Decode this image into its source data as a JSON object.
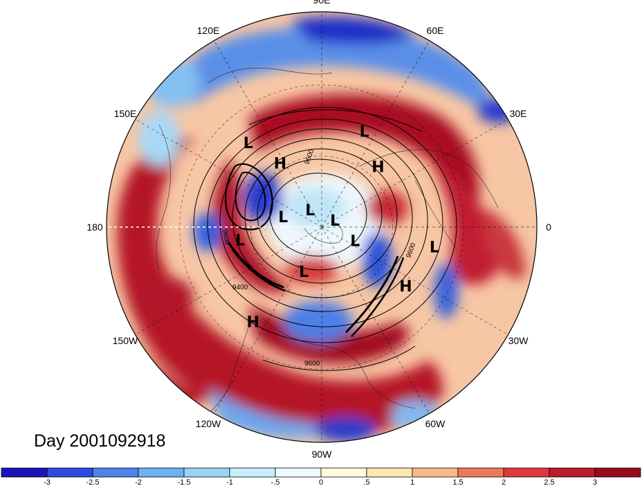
{
  "title": "Day 2001092918",
  "longitude_labels": [
    {
      "text": "90E",
      "angle": 0
    },
    {
      "text": "60E",
      "angle": 30
    },
    {
      "text": "30E",
      "angle": 60
    },
    {
      "text": "0",
      "angle": 90
    },
    {
      "text": "30W",
      "angle": 120
    },
    {
      "text": "60W",
      "angle": 150
    },
    {
      "text": "90W",
      "angle": 180
    },
    {
      "text": "120W",
      "angle": 210
    },
    {
      "text": "150W",
      "angle": 240
    },
    {
      "text": "180",
      "angle": 270
    },
    {
      "text": "150E",
      "angle": 300
    },
    {
      "text": "120E",
      "angle": 330
    }
  ],
  "pressure_centers": [
    {
      "text": "L",
      "lon": 66,
      "lat": 38
    },
    {
      "text": "H",
      "lon": 47,
      "lat": 48
    },
    {
      "text": "H",
      "lon": 123,
      "lat": 51
    },
    {
      "text": "L",
      "lon": 131,
      "lat": 35
    },
    {
      "text": "L",
      "lon": 165,
      "lat": 69
    },
    {
      "text": "L",
      "lon": 124,
      "lat": 79
    },
    {
      "text": "L",
      "lon": 28,
      "lat": 82
    },
    {
      "text": "L",
      "lon": -171,
      "lat": 48
    },
    {
      "text": "L",
      "lon": -112,
      "lat": 65
    },
    {
      "text": "L",
      "lon": -22,
      "lat": 71
    },
    {
      "text": "L",
      "lon": -10,
      "lat": 34
    },
    {
      "text": "H",
      "lon": -126,
      "lat": 33
    },
    {
      "text": "H",
      "lon": -35,
      "lat": 39
    }
  ],
  "contour_labels": [
    "9600",
    "9400",
    "9600",
    "9600",
    "9600"
  ],
  "colorbar": {
    "tick_labels": [
      "-3",
      "-2.5",
      "-2",
      "-1.5",
      "-1",
      "-.5",
      "0",
      ".5",
      "1",
      "1.5",
      "2",
      "2.5",
      "3"
    ],
    "colors": [
      "#1a14b8",
      "#2d4be0",
      "#4a83ea",
      "#6eb1f1",
      "#9bd3f7",
      "#c9eefb",
      "#eefbfe",
      "#fffbdc",
      "#fde7b0",
      "#f7ba86",
      "#ec7a59",
      "#e0373a",
      "#bd1a2c",
      "#960b1e"
    ]
  },
  "map": {
    "projection": "north-polar-stereographic",
    "field": "anomaly",
    "contour_field": "geopotential height",
    "grid": "dashed meridians every 30 degrees"
  }
}
